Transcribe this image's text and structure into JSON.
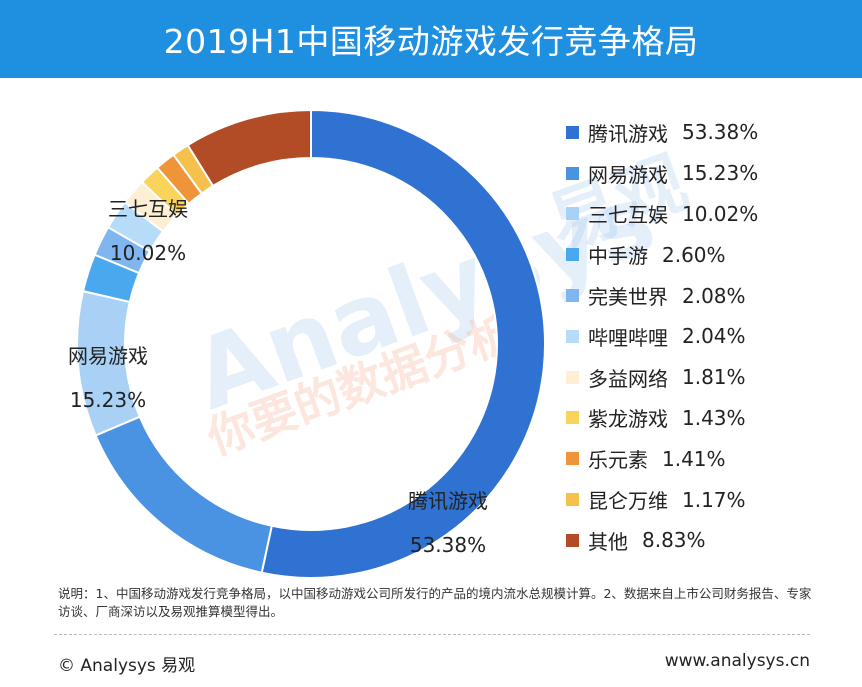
{
  "header": {
    "title": "2019H1中国移动游戏发行竞争格局"
  },
  "chart_data": {
    "type": "pie",
    "title": "2019H1中国移动游戏发行竞争格局",
    "categories": [
      "腾讯游戏",
      "网易游戏",
      "三七互娱",
      "中手游",
      "完美世界",
      "哔哩哔哩",
      "多益网络",
      "紫龙游戏",
      "乐元素",
      "昆仑万维",
      "其他"
    ],
    "values": [
      53.38,
      15.23,
      10.02,
      2.6,
      2.08,
      2.04,
      1.81,
      1.43,
      1.41,
      1.17,
      8.83
    ],
    "value_labels": [
      "53.38%",
      "15.23%",
      "10.02%",
      "2.60%",
      "2.08%",
      "2.04%",
      "1.81%",
      "1.43%",
      "1.41%",
      "1.17%",
      "8.83%"
    ],
    "colors": [
      "#2f72d2",
      "#4a93e2",
      "#a9d1f6",
      "#4aa8ef",
      "#7fb6ef",
      "#b6dcf9",
      "#fcefd4",
      "#fad35a",
      "#ef9438",
      "#f6c04c",
      "#b24c26"
    ],
    "labeled_slices": [
      0,
      1,
      2
    ],
    "legend_position": "right",
    "donut": true
  },
  "watermark": {
    "text_en": "Analysys",
    "text_cn1": "易观",
    "text_cn2": "你要的数据分析"
  },
  "note": {
    "text": "说明：1、中国移动游戏发行竞争格局，以中国移动游戏公司所发行的产品的境内流水总规模计算。2、数据来自上市公司财务报告、专家访谈、厂商深访以及易观推算模型得出。"
  },
  "footer": {
    "copyright": "© Analysys 易观",
    "url": "www.analysys.cn"
  }
}
